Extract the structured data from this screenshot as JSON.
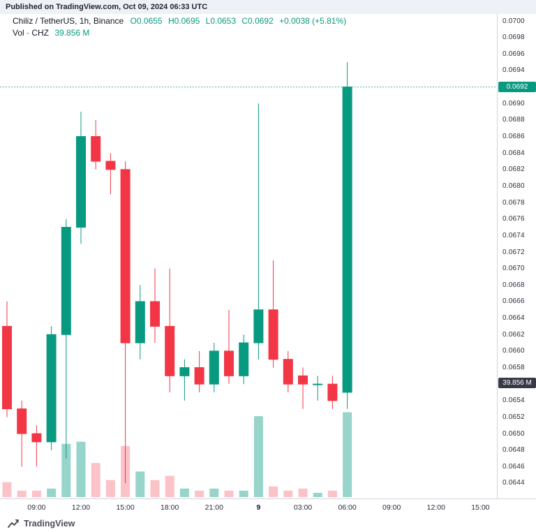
{
  "published_bar": {
    "text": "Published on TradingView.com, Oct 09, 2024 06:33 UTC"
  },
  "legend": {
    "symbol": "Chiliz / TetherUS, 1h, Binance",
    "open": "O0.0655",
    "high": "H0.0695",
    "low": "L0.0653",
    "close": "C0.0692",
    "change": "+0.0038 (+5.81%)",
    "volume_label": "Vol · CHZ",
    "volume_value": "39.856 M"
  },
  "badges": {
    "price": "0.0692",
    "volume": "39.856 M"
  },
  "footer": {
    "brand": "TradingView"
  },
  "colors": {
    "up": "#089981",
    "down": "#f23645",
    "vol_up": "rgba(8,153,129,0.42)",
    "vol_down": "rgba(242,54,69,0.30)",
    "price_badge_bg": "#089981",
    "vol_badge_bg": "#363a45",
    "axis_text": "#2a2e39"
  },
  "axes": {
    "y_ticks": [
      "0.0700",
      "0.0698",
      "0.0696",
      "0.0694",
      "0.0692",
      "0.0690",
      "0.0688",
      "0.0686",
      "0.0684",
      "0.0682",
      "0.0680",
      "0.0678",
      "0.0676",
      "0.0674",
      "0.0672",
      "0.0670",
      "0.0668",
      "0.0666",
      "0.0664",
      "0.0662",
      "0.0660",
      "0.0658",
      "0.0656",
      "0.0654",
      "0.0652",
      "0.0650",
      "0.0648",
      "0.0646",
      "0.0644"
    ],
    "x_ticks": [
      {
        "label": "09:00",
        "i": 2,
        "major": false
      },
      {
        "label": "12:00",
        "i": 5,
        "major": false
      },
      {
        "label": "15:00",
        "i": 8,
        "major": false
      },
      {
        "label": "18:00",
        "i": 11,
        "major": false
      },
      {
        "label": "21:00",
        "i": 14,
        "major": false
      },
      {
        "label": "9",
        "i": 17,
        "major": true
      },
      {
        "label": "03:00",
        "i": 20,
        "major": false
      },
      {
        "label": "06:00",
        "i": 23,
        "major": false
      },
      {
        "label": "09:00",
        "i": 26,
        "major": false
      },
      {
        "label": "12:00",
        "i": 29,
        "major": false
      },
      {
        "label": "15:00",
        "i": 32,
        "major": false
      }
    ]
  },
  "chart_data": {
    "type": "candlestick",
    "title": "Chiliz / TetherUS, 1h, Binance",
    "interval": "1h",
    "exchange": "Binance",
    "ylim": [
      0.0643,
      0.0701
    ],
    "price_line": 0.0692,
    "volume_unit": "M",
    "volume_axis_max": 40,
    "candles": [
      {
        "t": "07:00",
        "o": 0.0663,
        "h": 0.0666,
        "l": 0.0652,
        "c": 0.0653,
        "v": 7
      },
      {
        "t": "08:00",
        "o": 0.0653,
        "h": 0.0654,
        "l": 0.0646,
        "c": 0.065,
        "v": 3
      },
      {
        "t": "09:00",
        "o": 0.065,
        "h": 0.0651,
        "l": 0.0646,
        "c": 0.0649,
        "v": 3
      },
      {
        "t": "10:00",
        "o": 0.0649,
        "h": 0.0663,
        "l": 0.0648,
        "c": 0.0662,
        "v": 4
      },
      {
        "t": "11:00",
        "o": 0.0662,
        "h": 0.0676,
        "l": 0.0647,
        "c": 0.0675,
        "v": 25
      },
      {
        "t": "12:00",
        "o": 0.0675,
        "h": 0.0689,
        "l": 0.0673,
        "c": 0.0686,
        "v": 26
      },
      {
        "t": "13:00",
        "o": 0.0686,
        "h": 0.0688,
        "l": 0.0682,
        "c": 0.0683,
        "v": 16
      },
      {
        "t": "14:00",
        "o": 0.0683,
        "h": 0.0684,
        "l": 0.0679,
        "c": 0.0682,
        "v": 8
      },
      {
        "t": "15:00",
        "o": 0.0682,
        "h": 0.0683,
        "l": 0.0644,
        "c": 0.0661,
        "v": 24
      },
      {
        "t": "16:00",
        "o": 0.0661,
        "h": 0.0668,
        "l": 0.0659,
        "c": 0.0666,
        "v": 12
      },
      {
        "t": "17:00",
        "o": 0.0666,
        "h": 0.067,
        "l": 0.0661,
        "c": 0.0663,
        "v": 8
      },
      {
        "t": "18:00",
        "o": 0.0663,
        "h": 0.067,
        "l": 0.0655,
        "c": 0.0657,
        "v": 10
      },
      {
        "t": "19:00",
        "o": 0.0657,
        "h": 0.0659,
        "l": 0.0654,
        "c": 0.0658,
        "v": 4
      },
      {
        "t": "20:00",
        "o": 0.0658,
        "h": 0.066,
        "l": 0.0655,
        "c": 0.0656,
        "v": 3
      },
      {
        "t": "21:00",
        "o": 0.0656,
        "h": 0.0661,
        "l": 0.0655,
        "c": 0.066,
        "v": 4
      },
      {
        "t": "22:00",
        "o": 0.066,
        "h": 0.0665,
        "l": 0.0656,
        "c": 0.0657,
        "v": 3
      },
      {
        "t": "23:00",
        "o": 0.0657,
        "h": 0.0662,
        "l": 0.0656,
        "c": 0.0661,
        "v": 3
      },
      {
        "t": "00:00",
        "o": 0.0661,
        "h": 0.069,
        "l": 0.0659,
        "c": 0.0665,
        "v": 38
      },
      {
        "t": "01:00",
        "o": 0.0665,
        "h": 0.0671,
        "l": 0.0658,
        "c": 0.0659,
        "v": 5
      },
      {
        "t": "02:00",
        "o": 0.0659,
        "h": 0.066,
        "l": 0.0655,
        "c": 0.0656,
        "v": 3
      },
      {
        "t": "03:00",
        "o": 0.0657,
        "h": 0.0658,
        "l": 0.0653,
        "c": 0.0656,
        "v": 4
      },
      {
        "t": "04:00",
        "o": 0.0656,
        "h": 0.0657,
        "l": 0.0654,
        "c": 0.0656,
        "v": 2
      },
      {
        "t": "05:00",
        "o": 0.0656,
        "h": 0.0657,
        "l": 0.0653,
        "c": 0.0654,
        "v": 3
      },
      {
        "t": "06:00",
        "o": 0.0655,
        "h": 0.0695,
        "l": 0.0653,
        "c": 0.0692,
        "v": 39.856
      }
    ]
  }
}
